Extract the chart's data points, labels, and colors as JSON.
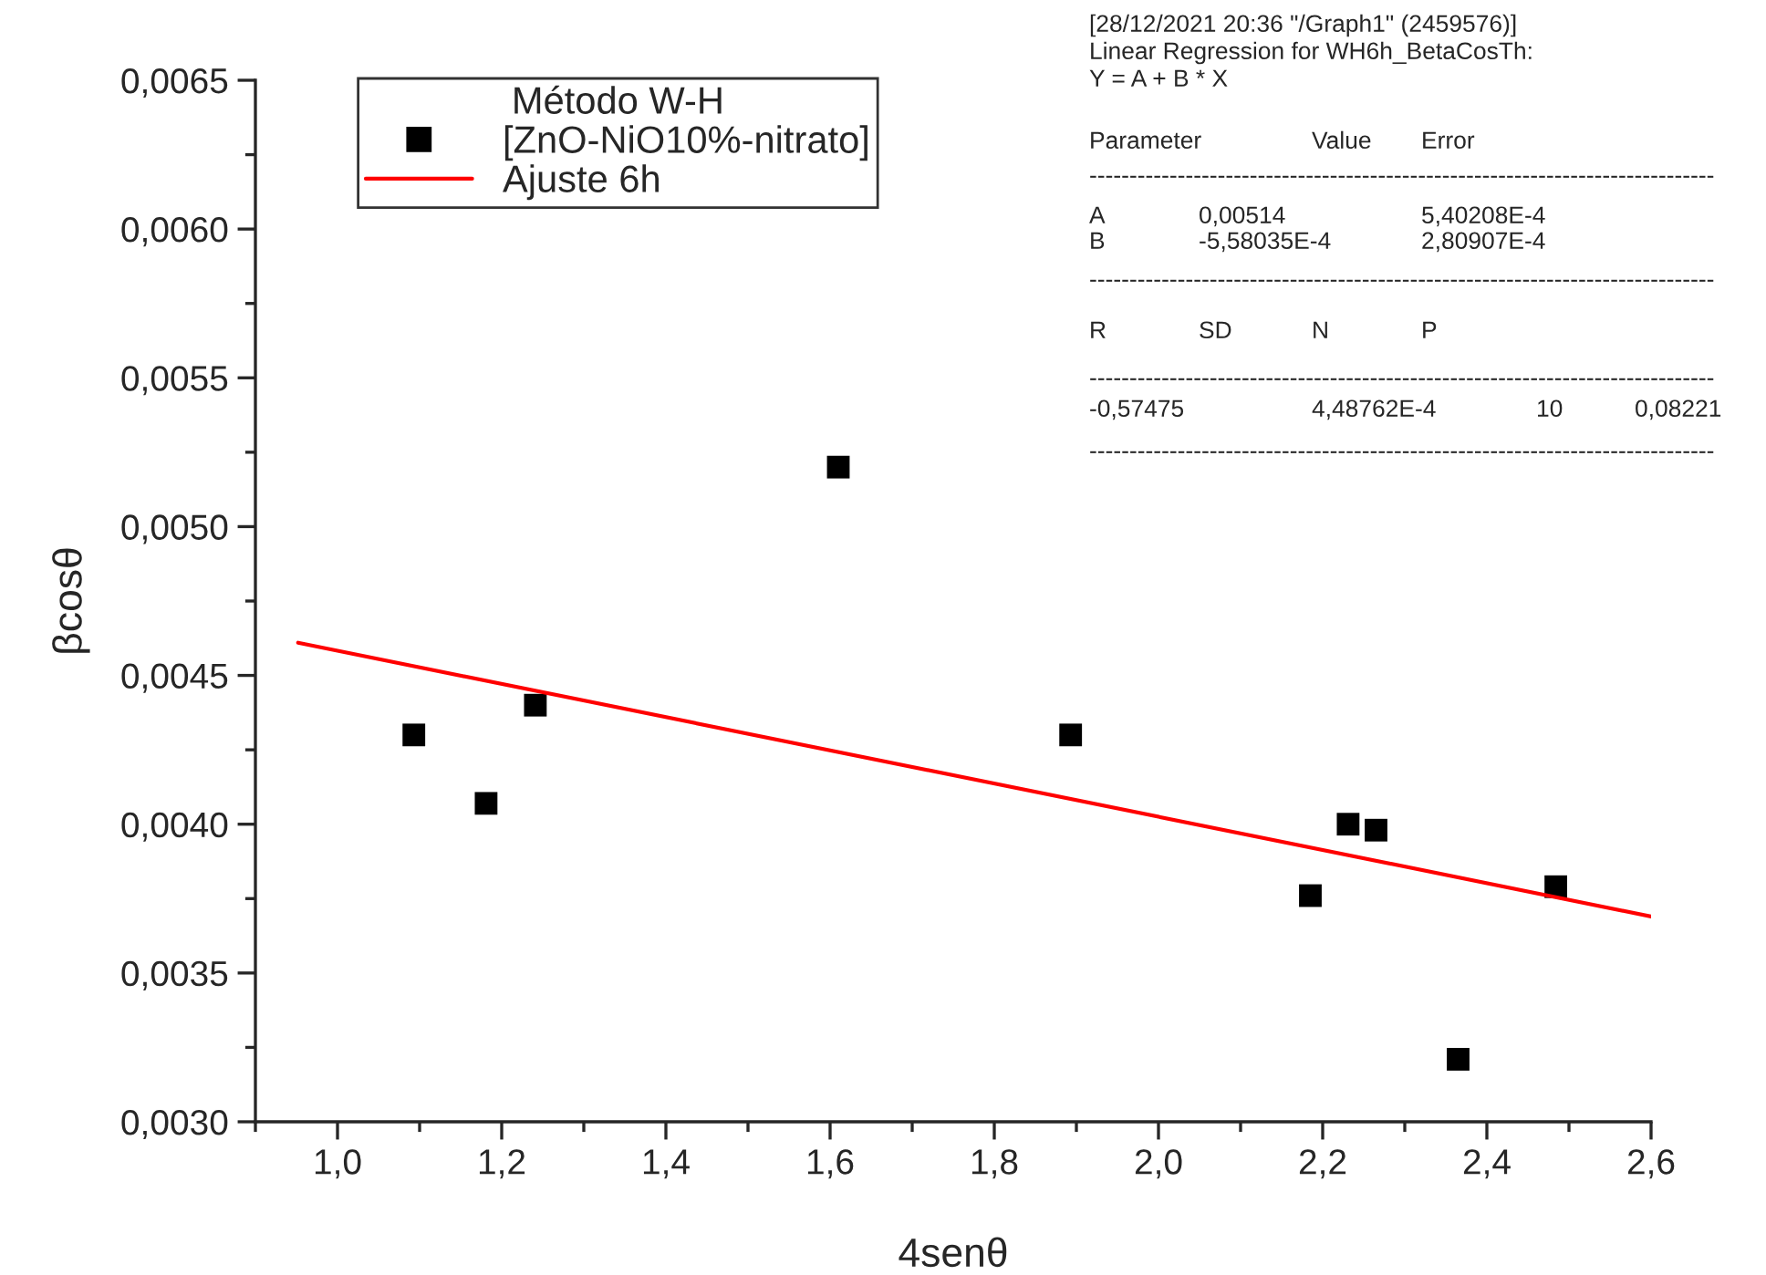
{
  "chart_data": {
    "type": "scatter",
    "xlabel": "4senθ",
    "ylabel": "βcosθ",
    "legend_title": "Método W-H",
    "legend": "top left",
    "series": [
      {
        "name": "[ZnO-NiO10%-nitrato]",
        "color": "#000000",
        "marker": "square",
        "x": [
          1.093,
          1.181,
          1.241,
          1.61,
          1.893,
          2.185,
          2.231,
          2.265,
          2.365,
          2.484
        ],
        "values": [
          0.0043,
          0.00407,
          0.0044,
          0.0052,
          0.0043,
          0.00376,
          0.004,
          0.00398,
          0.00321,
          0.00379
        ]
      },
      {
        "name": "Ajuste 6h",
        "type": "line",
        "color": "#ff0000",
        "line_style": "solid",
        "x": [
          0.952,
          2.6
        ],
        "values": [
          0.00461,
          0.00369
        ]
      }
    ],
    "xlim": [
      0.9,
      2.6
    ],
    "ylim": [
      0.003,
      0.0065
    ],
    "xticks": [
      {
        "value": 0.9,
        "label": null
      },
      {
        "value": 1.0,
        "label": "1,0"
      },
      {
        "value": 1.1,
        "label": null
      },
      {
        "value": 1.2,
        "label": "1,2"
      },
      {
        "value": 1.3,
        "label": null
      },
      {
        "value": 1.4,
        "label": "1,4"
      },
      {
        "value": 1.5,
        "label": null
      },
      {
        "value": 1.6,
        "label": "1,6"
      },
      {
        "value": 1.7,
        "label": null
      },
      {
        "value": 1.8,
        "label": "1,8"
      },
      {
        "value": 1.9,
        "label": null
      },
      {
        "value": 2.0,
        "label": "2,0"
      },
      {
        "value": 2.1,
        "label": null
      },
      {
        "value": 2.2,
        "label": "2,2"
      },
      {
        "value": 2.3,
        "label": null
      },
      {
        "value": 2.4,
        "label": "2,4"
      },
      {
        "value": 2.5,
        "label": null
      },
      {
        "value": 2.6,
        "label": "2,6"
      }
    ],
    "yticks": [
      {
        "value": 0.003,
        "label": "0,0030"
      },
      {
        "value": 0.00325,
        "label": null
      },
      {
        "value": 0.0035,
        "label": "0,0035"
      },
      {
        "value": 0.00375,
        "label": null
      },
      {
        "value": 0.004,
        "label": "0,0040"
      },
      {
        "value": 0.00425,
        "label": null
      },
      {
        "value": 0.0045,
        "label": "0,0045"
      },
      {
        "value": 0.00475,
        "label": null
      },
      {
        "value": 0.005,
        "label": "0,0050"
      },
      {
        "value": 0.00525,
        "label": null
      },
      {
        "value": 0.0055,
        "label": "0,0055"
      },
      {
        "value": 0.00575,
        "label": null
      },
      {
        "value": 0.006,
        "label": "0,0060"
      },
      {
        "value": 0.00625,
        "label": null
      },
      {
        "value": 0.0065,
        "label": "0,0065"
      }
    ],
    "grid": false,
    "annotations": [
      "[28/12/2021 20:36 \"/Graph1\" (2459576)]",
      "Linear Regression for WH6h_BetaCosTh:",
      "Y = A + B * X",
      "Parameter\t\tValue\tError",
      "------------------------------------------------------------------------------",
      "A\t0,00514\t\t5,40208E-4",
      "B\t-5,58035E-4\t\t2,80907E-4",
      "------------------------------------------------------------------------------",
      "R\tSD\tN\tP",
      "------------------------------------------------------------------------------",
      "-0,57475\t\t4,48762E-4\t10\t0,08221",
      "------------------------------------------------------------------------------"
    ]
  }
}
